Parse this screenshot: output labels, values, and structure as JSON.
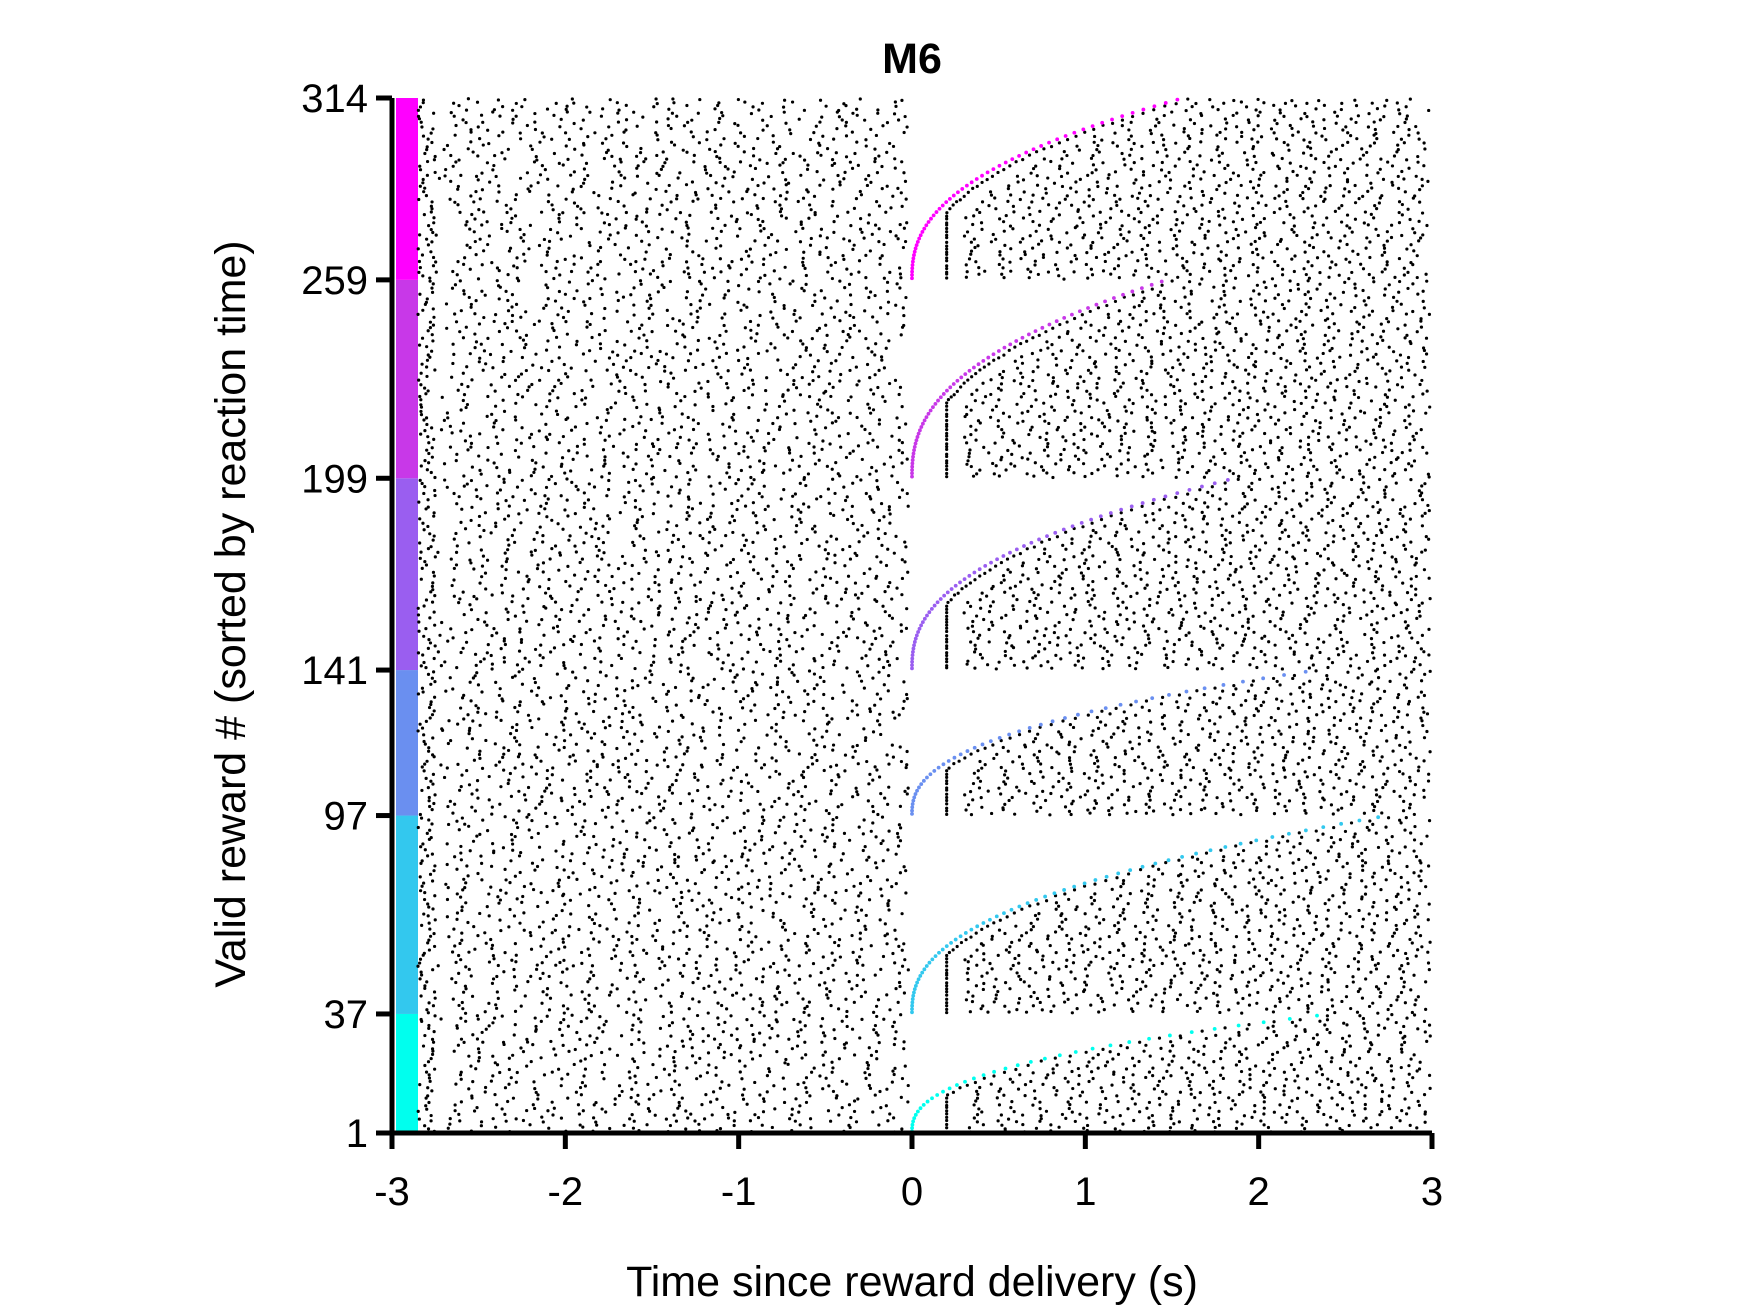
{
  "chart_data": {
    "type": "scatter",
    "subtype": "raster",
    "title": "M6",
    "xlabel": "Time since reward delivery (s)",
    "ylabel": "Valid reward # (sorted by reaction time)",
    "xlim": [
      -3,
      3
    ],
    "ylim": [
      1,
      314
    ],
    "x_ticks": [
      -3,
      -2,
      -1,
      0,
      1,
      2,
      3
    ],
    "x_tick_labels": [
      "-3",
      "-2",
      "-1",
      "0",
      "1",
      "2",
      "3"
    ],
    "y_ticks": [
      1,
      37,
      97,
      141,
      199,
      259,
      314
    ],
    "y_tick_labels": [
      "1",
      "37",
      "97",
      "141",
      "199",
      "259",
      "314"
    ],
    "grid": false,
    "legend": "none",
    "spike_color": "#000000",
    "groups": [
      {
        "from": 1,
        "to": 37,
        "color": "#00ffee",
        "rt_min": 0.0,
        "rt_max": 2.5
      },
      {
        "from": 37,
        "to": 97,
        "color": "#33c8ee",
        "rt_min": 0.0,
        "rt_max": 2.8
      },
      {
        "from": 97,
        "to": 141,
        "color": "#6a8ff0",
        "rt_min": 0.0,
        "rt_max": 2.4
      },
      {
        "from": 141,
        "to": 199,
        "color": "#9a5ef0",
        "rt_min": 0.0,
        "rt_max": 1.9
      },
      {
        "from": 199,
        "to": 259,
        "color": "#c838e8",
        "rt_min": 0.0,
        "rt_max": 1.5
      },
      {
        "from": 259,
        "to": 314,
        "color": "#ff00ff",
        "rt_min": 0.0,
        "rt_max": 1.6
      }
    ]
  }
}
